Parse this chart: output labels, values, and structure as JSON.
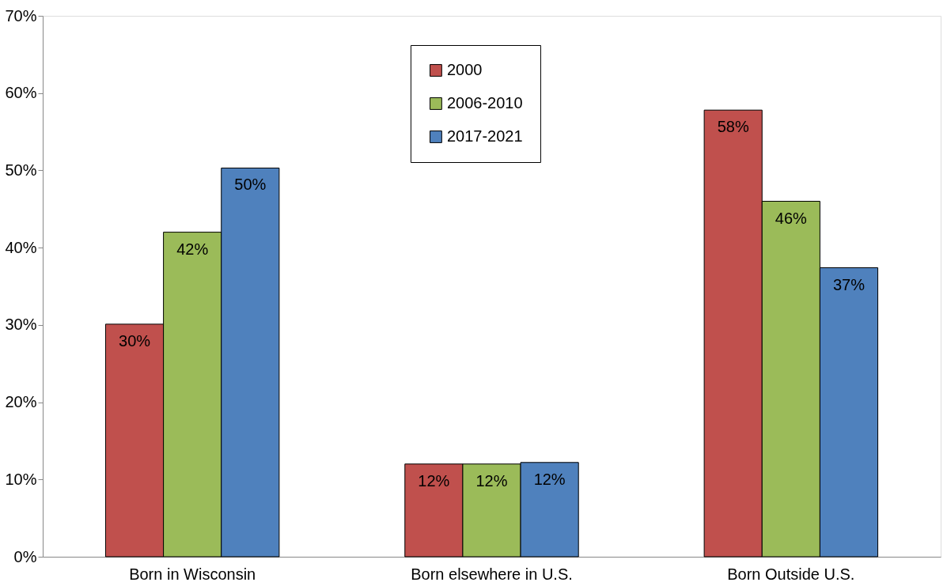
{
  "chart_data": {
    "type": "bar",
    "categories": [
      "Born in Wisconsin",
      "Born elsewhere in U.S.",
      "Born Outside U.S."
    ],
    "series": [
      {
        "name": "2000",
        "color": "#c0504d",
        "values": [
          30.1,
          12,
          57.8
        ],
        "value_labels": [
          "30%",
          "12%",
          "58%"
        ]
      },
      {
        "name": "2006-2010",
        "color": "#9bbb59",
        "values": [
          42,
          12,
          46
        ],
        "value_labels": [
          "42%",
          "12%",
          "46%"
        ]
      },
      {
        "name": "2017-2021",
        "color": "#4f81bd",
        "values": [
          50.3,
          12.2,
          37.4
        ],
        "value_labels": [
          "50%",
          "12%",
          "37%"
        ]
      }
    ],
    "ylim": [
      0,
      70
    ],
    "yticks": [
      {
        "value": 0,
        "label": "0%"
      },
      {
        "value": 10,
        "label": "10%"
      },
      {
        "value": 20,
        "label": "20%"
      },
      {
        "value": 30,
        "label": "30%"
      },
      {
        "value": 40,
        "label": "40%"
      },
      {
        "value": 50,
        "label": "50%"
      },
      {
        "value": 60,
        "label": "60%"
      },
      {
        "value": 70,
        "label": "70%"
      }
    ],
    "grid": false,
    "legend": "top"
  }
}
